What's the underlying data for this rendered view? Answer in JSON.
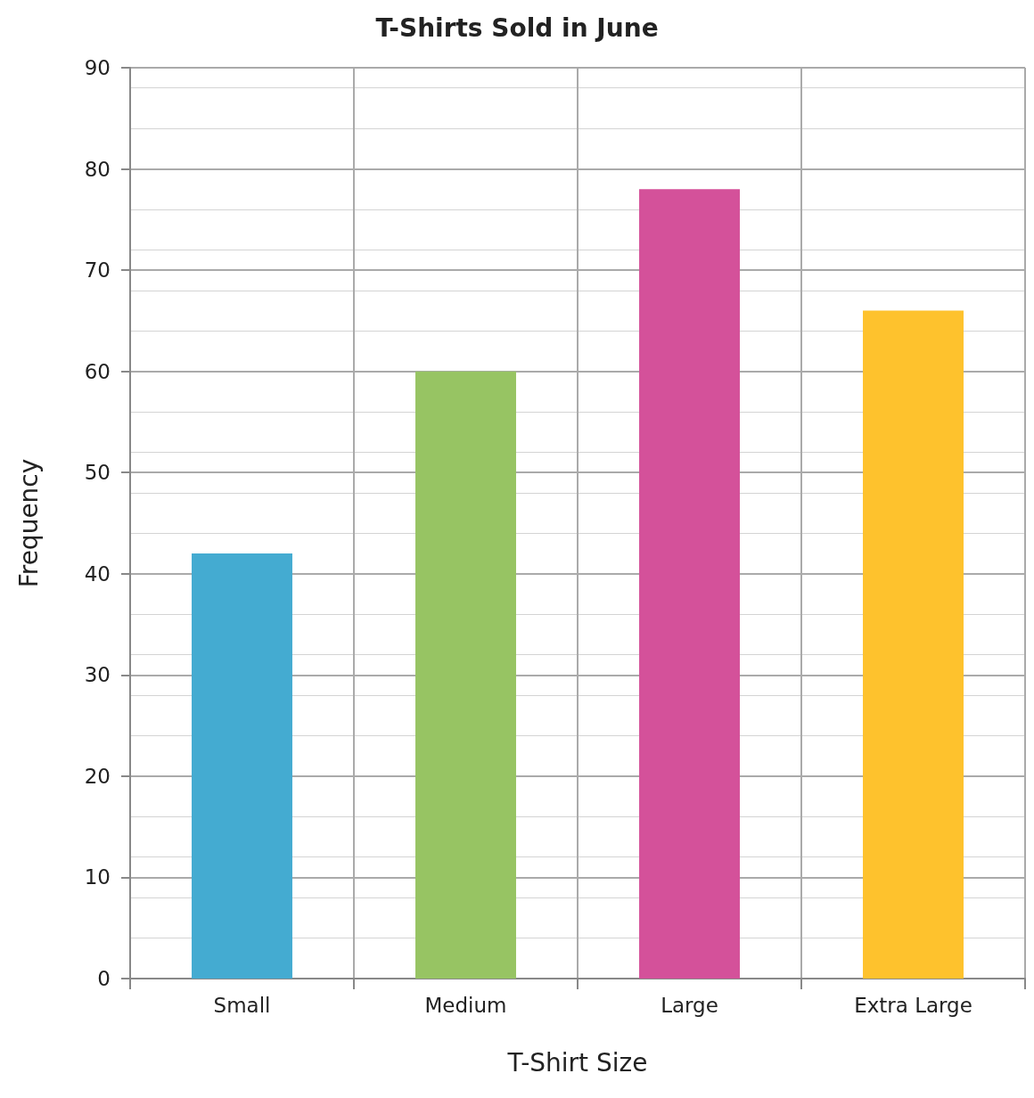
{
  "chart_data": {
    "type": "bar",
    "title": "T-Shirts Sold in June",
    "xlabel": "T-Shirt Size",
    "ylabel": "Frequency",
    "categories": [
      "Small",
      "Medium",
      "Large",
      "Extra Large"
    ],
    "values": [
      42,
      60,
      78,
      66
    ],
    "colors": [
      "#44abd1",
      "#97c463",
      "#d4519a",
      "#fec22d"
    ],
    "ylim": [
      0,
      90
    ],
    "yticks": [
      0,
      10,
      20,
      30,
      40,
      50,
      60,
      70,
      80,
      90
    ],
    "grid": true
  }
}
